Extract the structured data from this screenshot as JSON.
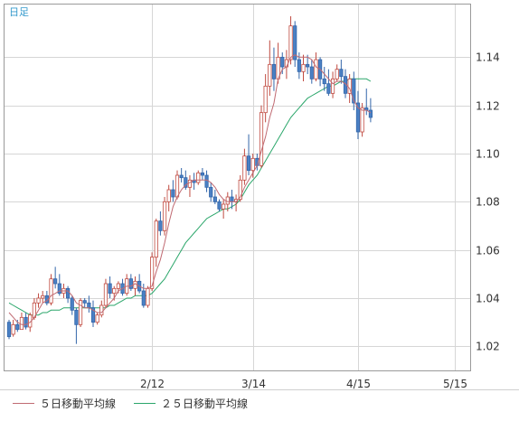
{
  "period_label": "日足",
  "chart_data": {
    "type": "candlestick",
    "title": "",
    "xlabel": "",
    "ylabel": "",
    "ylim": [
      1.01,
      1.16
    ],
    "y_ticks": [
      1.02,
      1.04,
      1.06,
      1.08,
      1.1,
      1.12,
      1.14
    ],
    "y_tick_labels": [
      "1.02",
      "1.04",
      "1.06",
      "1.08",
      "1.10",
      "1.12",
      "1.14"
    ],
    "x_tick_labels": [
      {
        "label": "2/12",
        "index": 34
      },
      {
        "label": "3/14",
        "index": 58
      },
      {
        "label": "4/15",
        "index": 83
      },
      {
        "label": "5/15",
        "index": 106
      }
    ],
    "grid": true,
    "legend_position": "bottom",
    "series": [
      {
        "name": "５日移動平均線",
        "color": "#c06a72"
      },
      {
        "name": "２５日移動平均線",
        "color": "#2aa66a"
      }
    ],
    "candle_colors": {
      "up": "#ffffff",
      "up_border": "#c04a40",
      "down": "#4a80c4",
      "down_border": "#3366aa"
    },
    "ohlc": [
      [
        1.03,
        1.031,
        1.023,
        1.024
      ],
      [
        1.025,
        1.031,
        1.024,
        1.029
      ],
      [
        1.029,
        1.031,
        1.026,
        1.027
      ],
      [
        1.027,
        1.034,
        1.027,
        1.032
      ],
      [
        1.032,
        1.034,
        1.027,
        1.028
      ],
      [
        1.028,
        1.034,
        1.026,
        1.033
      ],
      [
        1.032,
        1.04,
        1.031,
        1.038
      ],
      [
        1.038,
        1.042,
        1.036,
        1.04
      ],
      [
        1.04,
        1.043,
        1.038,
        1.041
      ],
      [
        1.041,
        1.043,
        1.037,
        1.038
      ],
      [
        1.038,
        1.05,
        1.037,
        1.048
      ],
      [
        1.048,
        1.053,
        1.044,
        1.046
      ],
      [
        1.046,
        1.05,
        1.041,
        1.042
      ],
      [
        1.042,
        1.046,
        1.04,
        1.044
      ],
      [
        1.044,
        1.045,
        1.038,
        1.04
      ],
      [
        1.04,
        1.041,
        1.033,
        1.035
      ],
      [
        1.035,
        1.036,
        1.021,
        1.029
      ],
      [
        1.029,
        1.04,
        1.028,
        1.039
      ],
      [
        1.039,
        1.04,
        1.036,
        1.038
      ],
      [
        1.038,
        1.041,
        1.034,
        1.036
      ],
      [
        1.036,
        1.039,
        1.028,
        1.03
      ],
      [
        1.03,
        1.034,
        1.029,
        1.033
      ],
      [
        1.033,
        1.039,
        1.032,
        1.037
      ],
      [
        1.037,
        1.048,
        1.036,
        1.046
      ],
      [
        1.046,
        1.049,
        1.04,
        1.042
      ],
      [
        1.042,
        1.045,
        1.039,
        1.044
      ],
      [
        1.044,
        1.047,
        1.042,
        1.046
      ],
      [
        1.046,
        1.048,
        1.041,
        1.042
      ],
      [
        1.042,
        1.05,
        1.041,
        1.048
      ],
      [
        1.048,
        1.05,
        1.043,
        1.044
      ],
      [
        1.044,
        1.049,
        1.041,
        1.047
      ],
      [
        1.047,
        1.05,
        1.042,
        1.043
      ],
      [
        1.043,
        1.046,
        1.036,
        1.037
      ],
      [
        1.037,
        1.045,
        1.036,
        1.044
      ],
      [
        1.044,
        1.059,
        1.043,
        1.057
      ],
      [
        1.057,
        1.073,
        1.053,
        1.072
      ],
      [
        1.072,
        1.076,
        1.066,
        1.068
      ],
      [
        1.068,
        1.082,
        1.066,
        1.08
      ],
      [
        1.08,
        1.087,
        1.076,
        1.085
      ],
      [
        1.085,
        1.089,
        1.08,
        1.082
      ],
      [
        1.082,
        1.093,
        1.081,
        1.091
      ],
      [
        1.091,
        1.094,
        1.088,
        1.09
      ],
      [
        1.09,
        1.093,
        1.085,
        1.086
      ],
      [
        1.086,
        1.091,
        1.082,
        1.089
      ],
      [
        1.089,
        1.092,
        1.085,
        1.088
      ],
      [
        1.088,
        1.093,
        1.087,
        1.092
      ],
      [
        1.092,
        1.094,
        1.089,
        1.091
      ],
      [
        1.091,
        1.093,
        1.084,
        1.086
      ],
      [
        1.086,
        1.088,
        1.08,
        1.082
      ],
      [
        1.082,
        1.085,
        1.079,
        1.08
      ],
      [
        1.08,
        1.081,
        1.076,
        1.077
      ],
      [
        1.077,
        1.081,
        1.073,
        1.079
      ],
      [
        1.079,
        1.084,
        1.076,
        1.082
      ],
      [
        1.082,
        1.085,
        1.077,
        1.08
      ],
      [
        1.08,
        1.083,
        1.076,
        1.081
      ],
      [
        1.081,
        1.091,
        1.08,
        1.089
      ],
      [
        1.089,
        1.102,
        1.087,
        1.099
      ],
      [
        1.099,
        1.108,
        1.091,
        1.093
      ],
      [
        1.093,
        1.1,
        1.09,
        1.098
      ],
      [
        1.098,
        1.1,
        1.093,
        1.095
      ],
      [
        1.095,
        1.12,
        1.094,
        1.117
      ],
      [
        1.117,
        1.133,
        1.113,
        1.128
      ],
      [
        1.128,
        1.147,
        1.124,
        1.137
      ],
      [
        1.137,
        1.144,
        1.126,
        1.131
      ],
      [
        1.131,
        1.146,
        1.129,
        1.14
      ],
      [
        1.14,
        1.142,
        1.133,
        1.136
      ],
      [
        1.136,
        1.143,
        1.131,
        1.139
      ],
      [
        1.139,
        1.157,
        1.137,
        1.153
      ],
      [
        1.153,
        1.155,
        1.136,
        1.139
      ],
      [
        1.139,
        1.142,
        1.131,
        1.134
      ],
      [
        1.134,
        1.141,
        1.13,
        1.137
      ],
      [
        1.137,
        1.141,
        1.133,
        1.136
      ],
      [
        1.136,
        1.139,
        1.129,
        1.131
      ],
      [
        1.131,
        1.142,
        1.13,
        1.139
      ],
      [
        1.139,
        1.14,
        1.128,
        1.131
      ],
      [
        1.131,
        1.136,
        1.126,
        1.129
      ],
      [
        1.129,
        1.135,
        1.124,
        1.125
      ],
      [
        1.125,
        1.134,
        1.123,
        1.131
      ],
      [
        1.131,
        1.137,
        1.13,
        1.135
      ],
      [
        1.135,
        1.139,
        1.129,
        1.132
      ],
      [
        1.132,
        1.135,
        1.123,
        1.125
      ],
      [
        1.125,
        1.133,
        1.121,
        1.131
      ],
      [
        1.131,
        1.134,
        1.118,
        1.121
      ],
      [
        1.121,
        1.126,
        1.106,
        1.109
      ],
      [
        1.109,
        1.121,
        1.107,
        1.119
      ],
      [
        1.119,
        1.127,
        1.116,
        1.118
      ],
      [
        1.118,
        1.123,
        1.113,
        1.115
      ]
    ],
    "ma5": [
      1.034,
      1.032,
      1.03,
      1.029,
      1.029,
      1.03,
      1.032,
      1.035,
      1.038,
      1.039,
      1.041,
      1.042,
      1.043,
      1.043,
      1.043,
      1.041,
      1.038,
      1.037,
      1.036,
      1.036,
      1.035,
      1.034,
      1.034,
      1.036,
      1.038,
      1.04,
      1.043,
      1.044,
      1.045,
      1.045,
      1.046,
      1.045,
      1.044,
      1.044,
      1.045,
      1.051,
      1.056,
      1.063,
      1.071,
      1.078,
      1.082,
      1.085,
      1.087,
      1.088,
      1.089,
      1.089,
      1.089,
      1.089,
      1.088,
      1.086,
      1.083,
      1.081,
      1.08,
      1.08,
      1.08,
      1.082,
      1.086,
      1.089,
      1.092,
      1.095,
      1.101,
      1.107,
      1.115,
      1.121,
      1.131,
      1.135,
      1.136,
      1.14,
      1.141,
      1.14,
      1.14,
      1.14,
      1.139,
      1.136,
      1.135,
      1.133,
      1.131,
      1.129,
      1.13,
      1.13,
      1.129,
      1.127,
      1.122,
      1.119,
      1.118,
      1.118,
      1.117
    ],
    "ma25": [
      1.038,
      1.037,
      1.036,
      1.035,
      1.034,
      1.033,
      1.033,
      1.033,
      1.034,
      1.034,
      1.035,
      1.035,
      1.035,
      1.036,
      1.036,
      1.036,
      1.036,
      1.036,
      1.036,
      1.036,
      1.036,
      1.036,
      1.036,
      1.036,
      1.037,
      1.037,
      1.038,
      1.039,
      1.04,
      1.04,
      1.041,
      1.041,
      1.041,
      1.041,
      1.042,
      1.044,
      1.046,
      1.048,
      1.051,
      1.054,
      1.057,
      1.06,
      1.063,
      1.065,
      1.067,
      1.069,
      1.071,
      1.073,
      1.074,
      1.075,
      1.076,
      1.077,
      1.077,
      1.078,
      1.079,
      1.081,
      1.084,
      1.087,
      1.089,
      1.091,
      1.094,
      1.097,
      1.1,
      1.103,
      1.106,
      1.109,
      1.112,
      1.115,
      1.117,
      1.119,
      1.121,
      1.123,
      1.124,
      1.125,
      1.126,
      1.127,
      1.128,
      1.128,
      1.129,
      1.13,
      1.13,
      1.131,
      1.131,
      1.131,
      1.131,
      1.131,
      1.13
    ]
  }
}
